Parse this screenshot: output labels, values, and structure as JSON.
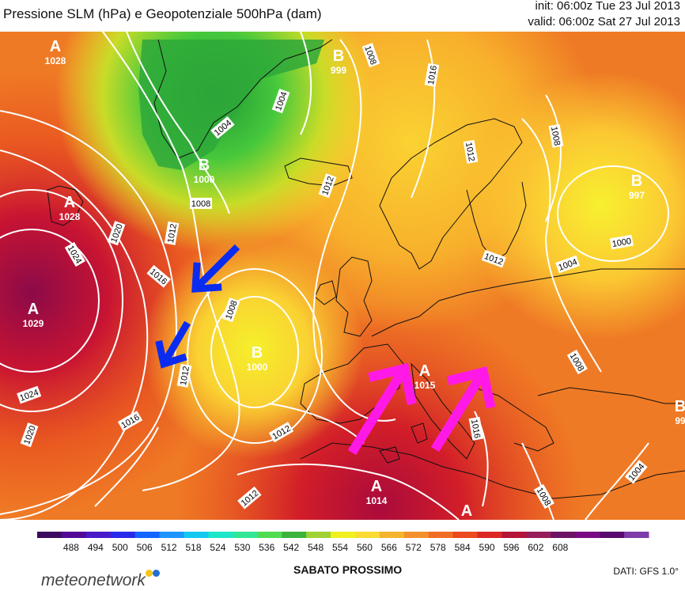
{
  "header": {
    "title": "Pressione SLM (hPa) e Geopotenziale 500hPa (dam)",
    "init": "init: 06:00z Tue 23 Jul 2013",
    "valid": "valid: 06:00z Sat 27 Jul 2013"
  },
  "map": {
    "pressure_centers": [
      {
        "symbol": "A",
        "value": "1028"
      },
      {
        "symbol": "A",
        "value": "1028"
      },
      {
        "symbol": "A",
        "value": "1029"
      },
      {
        "symbol": "B",
        "value": "1000"
      },
      {
        "symbol": "B",
        "value": "1000"
      },
      {
        "symbol": "B",
        "value": "999"
      },
      {
        "symbol": "B",
        "value": "997"
      },
      {
        "symbol": "A",
        "value": "1015"
      },
      {
        "symbol": "A",
        "value": "1014"
      },
      {
        "symbol": "A",
        "value": ""
      },
      {
        "symbol": "B",
        "value": "99"
      }
    ],
    "isobar_labels": [
      "1008",
      "1016",
      "1004",
      "1004",
      "1008",
      "1012",
      "1012",
      "1008",
      "1020",
      "1024",
      "1016",
      "1008",
      "1012",
      "1024",
      "1020",
      "1016",
      "1012",
      "1012",
      "1012",
      "1016",
      "1000",
      "1004",
      "1008",
      "1004",
      "1008",
      "1012"
    ],
    "arrows": [
      {
        "color": "#0a2cf0",
        "direction": "southwest"
      },
      {
        "color": "#0a2cf0",
        "direction": "southwest"
      },
      {
        "color": "#ff19e6",
        "direction": "northeast"
      },
      {
        "color": "#ff19e6",
        "direction": "northeast"
      }
    ]
  },
  "scale": {
    "labels": [
      "488",
      "494",
      "500",
      "506",
      "512",
      "518",
      "524",
      "530",
      "536",
      "542",
      "548",
      "554",
      "560",
      "566",
      "572",
      "578",
      "584",
      "590",
      "596",
      "602",
      "608"
    ],
    "colors": [
      "#3c0a5e",
      "#520a96",
      "#4b1ac8",
      "#2a2aea",
      "#1464ff",
      "#1e96ff",
      "#14c8f0",
      "#1ee6c8",
      "#32e696",
      "#50dc50",
      "#3cb43c",
      "#a0d232",
      "#f0f01e",
      "#fadc32",
      "#f5b42d",
      "#f5912d",
      "#f06e23",
      "#eb4b1e",
      "#dc2823",
      "#b41437",
      "#961e5a",
      "#6e1464",
      "#7a0a84",
      "#5a0a6e",
      "#7d3caa"
    ]
  },
  "footer": {
    "brand": "meteonetwork",
    "brand_dot_colors": [
      "#f5c518",
      "#1f6fd6"
    ],
    "label": "SABATO PROSSIMO",
    "source": "DATI: GFS 1.0°"
  }
}
